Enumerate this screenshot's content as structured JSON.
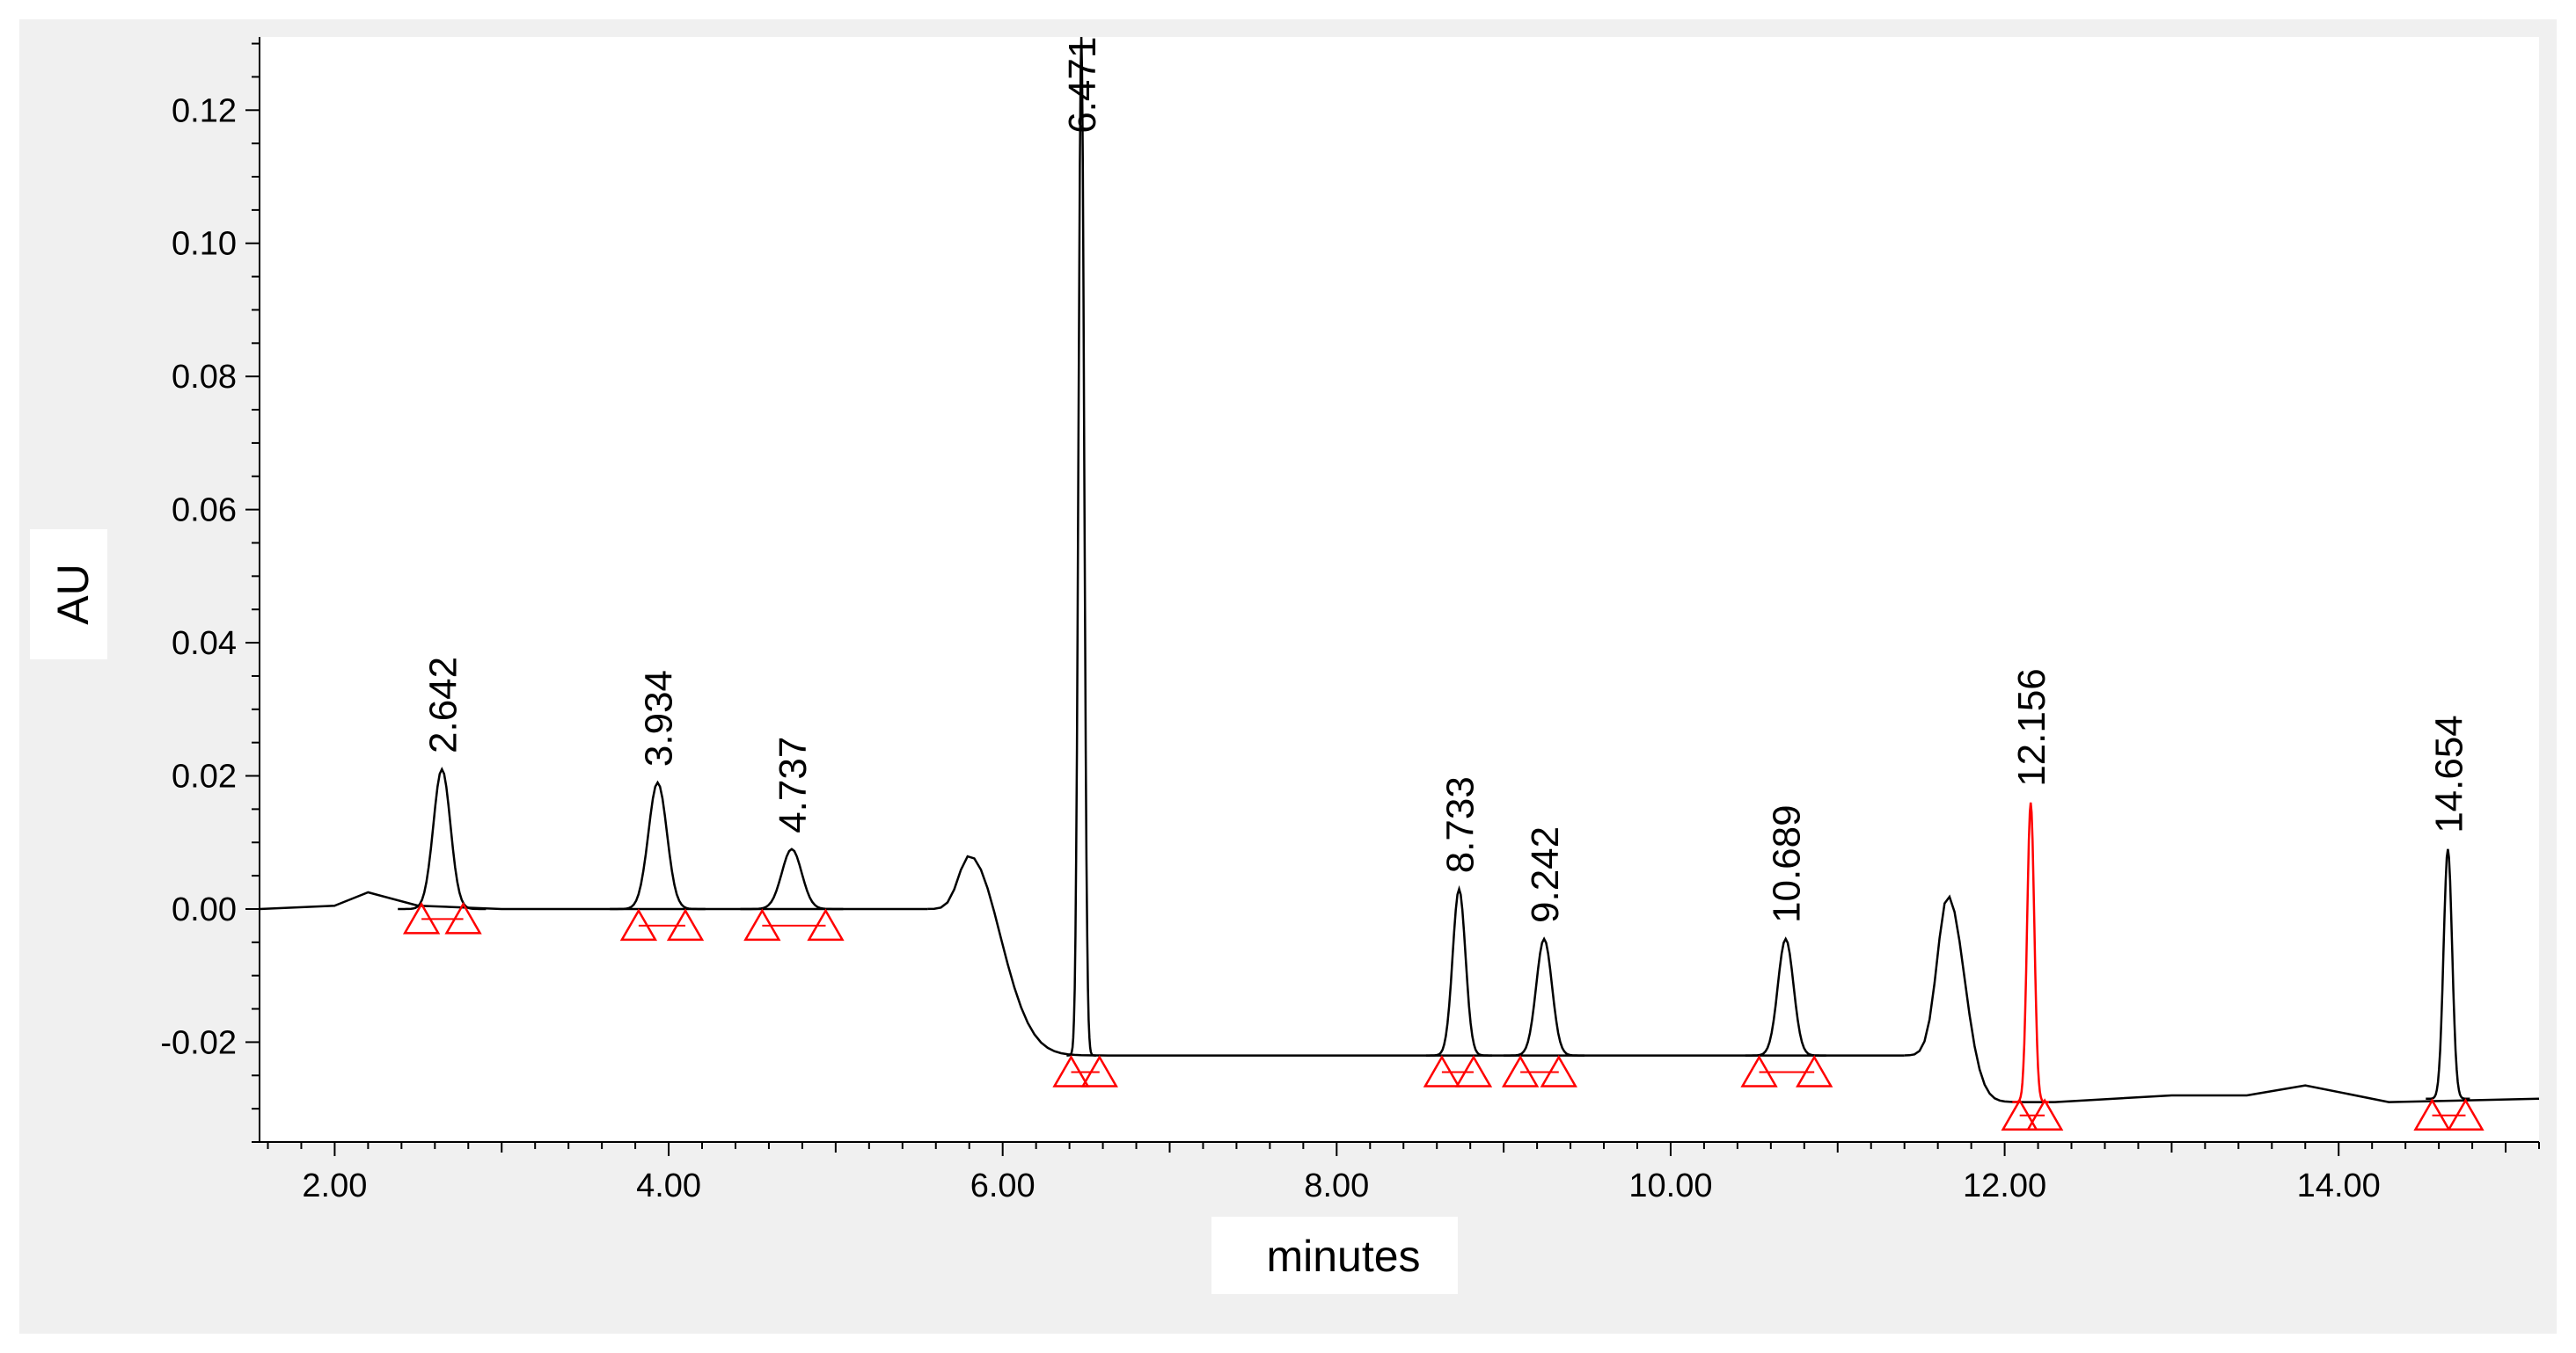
{
  "chart_data": {
    "type": "line",
    "xlabel": "minutes",
    "ylabel": "AU",
    "xlim": [
      1.55,
      15.2
    ],
    "ylim": [
      -0.035,
      0.131
    ],
    "x_ticks": [
      "2.00",
      "4.00",
      "6.00",
      "8.00",
      "10.00",
      "12.00",
      "14.00"
    ],
    "x_tick_values": [
      2,
      4,
      6,
      8,
      10,
      12,
      14
    ],
    "y_ticks": [
      "0.12",
      "0.10",
      "0.08",
      "0.06",
      "0.04",
      "0.02",
      "0.00",
      "-0.02"
    ],
    "y_tick_values": [
      0.12,
      0.1,
      0.08,
      0.06,
      0.04,
      0.02,
      0.0,
      -0.02
    ],
    "grid": false,
    "colors": {
      "trace": "#000000",
      "highlight_trace": "#ff0000",
      "integration_marker": "#ff0000",
      "panel": "#f0f0f0",
      "plot": "#ffffff"
    },
    "baseline_segments": [
      {
        "x": [
          1.55,
          2.0,
          2.2,
          2.5,
          3.0,
          4.0,
          5.0,
          5.55
        ],
        "y": [
          0.0,
          0.0005,
          0.0025,
          0.0005,
          0.0,
          0.0,
          0.0,
          0.0
        ]
      },
      {
        "x": [
          6.75,
          11.4
        ],
        "y": [
          -0.022,
          -0.022
        ]
      },
      {
        "x": [
          12.3,
          13.0,
          13.45,
          13.8,
          14.3,
          15.2
        ],
        "y": [
          -0.029,
          -0.028,
          -0.028,
          -0.0265,
          -0.029,
          -0.0285
        ]
      }
    ],
    "unlabeled_features": [
      {
        "x": 5.8,
        "height": 0.008
      },
      {
        "x": 11.66,
        "height": 0.002
      }
    ],
    "peaks": [
      {
        "label": "2.642",
        "x": 2.642,
        "apex": 0.021,
        "base": 0.0,
        "width": 0.12,
        "marker_base": -0.0015,
        "markers": [
          2.52,
          2.77
        ]
      },
      {
        "label": "3.934",
        "x": 3.934,
        "apex": 0.019,
        "base": 0.0,
        "width": 0.13,
        "marker_base": -0.0025,
        "markers": [
          3.82,
          4.1
        ]
      },
      {
        "label": "4.737",
        "x": 4.737,
        "apex": 0.009,
        "base": 0.0,
        "width": 0.14,
        "marker_base": -0.0025,
        "markers": [
          4.56,
          4.94
        ]
      },
      {
        "label": "6.471",
        "x": 6.471,
        "apex": 0.131,
        "base": -0.022,
        "width": 0.04,
        "marker_base": -0.0245,
        "markers": [
          6.41,
          6.58
        ]
      },
      {
        "label": "8.733",
        "x": 8.733,
        "apex": 0.003,
        "base": -0.022,
        "width": 0.09,
        "marker_base": -0.0245,
        "markers": [
          8.63,
          8.82
        ]
      },
      {
        "label": "9.242",
        "x": 9.242,
        "apex": -0.0045,
        "base": -0.022,
        "width": 0.11,
        "marker_base": -0.0245,
        "markers": [
          9.1,
          9.33
        ]
      },
      {
        "label": "10.689",
        "x": 10.689,
        "apex": -0.0045,
        "base": -0.022,
        "width": 0.11,
        "marker_base": -0.0245,
        "markers": [
          10.53,
          10.86
        ]
      },
      {
        "label": "12.156",
        "x": 12.156,
        "apex": 0.016,
        "base": -0.029,
        "width": 0.05,
        "marker_base": -0.031,
        "markers": [
          12.09,
          12.24
        ],
        "highlight": true
      },
      {
        "label": "14.654",
        "x": 14.654,
        "apex": 0.009,
        "base": -0.0285,
        "width": 0.06,
        "marker_base": -0.031,
        "markers": [
          14.56,
          14.76
        ]
      }
    ]
  }
}
